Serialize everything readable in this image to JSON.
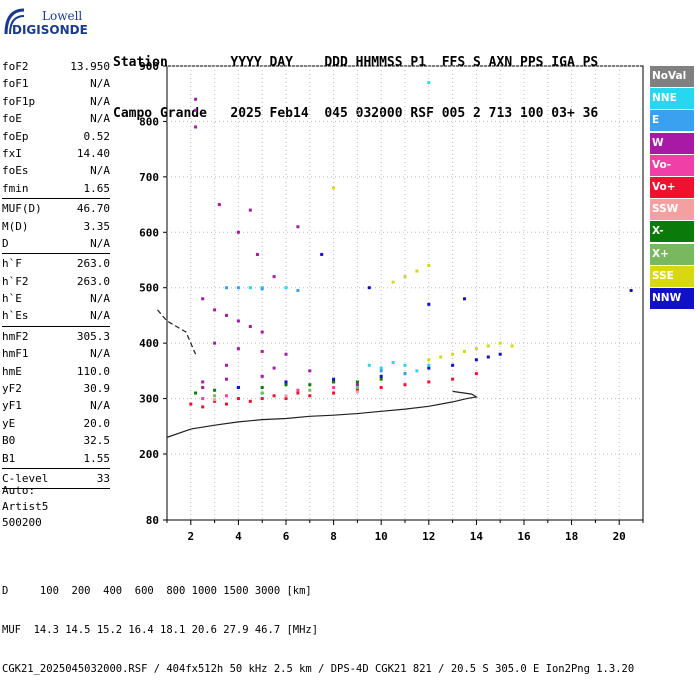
{
  "logo": {
    "line1": "Lowell",
    "line2": "DIGISONDE"
  },
  "header": {
    "row1": "Station        YYYY DAY    DDD HHMMSS P1  FFS S AXN PPS IGA PS",
    "row2": "Campo Grande   2025 Feb14  045 032000 RSF 005 2 713 100 03+ 36"
  },
  "params": [
    {
      "k": "foF2",
      "v": "13.950"
    },
    {
      "k": "foF1",
      "v": "N/A"
    },
    {
      "k": "foF1p",
      "v": "N/A"
    },
    {
      "k": "foE",
      "v": "N/A"
    },
    {
      "k": "foEp",
      "v": "0.52"
    },
    {
      "k": "fxI",
      "v": "14.40"
    },
    {
      "k": "foEs",
      "v": "N/A"
    },
    {
      "k": "fmin",
      "v": "1.65"
    },
    {
      "sep": true
    },
    {
      "k": "MUF(D)",
      "v": "46.70"
    },
    {
      "k": "M(D)",
      "v": "3.35"
    },
    {
      "k": "D",
      "v": "N/A"
    },
    {
      "sep": true
    },
    {
      "k": "h`F",
      "v": "263.0"
    },
    {
      "k": "h`F2",
      "v": "263.0"
    },
    {
      "k": "h`E",
      "v": "N/A"
    },
    {
      "k": "h`Es",
      "v": "N/A"
    },
    {
      "sep": true
    },
    {
      "k": "hmF2",
      "v": "305.3"
    },
    {
      "k": "hmF1",
      "v": "N/A"
    },
    {
      "k": "hmE",
      "v": "110.0"
    },
    {
      "k": "yF2",
      "v": "30.9"
    },
    {
      "k": "yF1",
      "v": "N/A"
    },
    {
      "k": "yE",
      "v": "20.0"
    },
    {
      "k": "B0",
      "v": "32.5"
    },
    {
      "k": "B1",
      "v": "1.55"
    },
    {
      "sep": true
    },
    {
      "k": "C-level",
      "v": "33"
    },
    {
      "sep": true
    }
  ],
  "auto": {
    "l1": "Auto:",
    "l2": "Artist5",
    "l3": "500200"
  },
  "legend": [
    {
      "label": "NoVal",
      "color": "#808080"
    },
    {
      "label": "NNE",
      "color": "#29d6f0"
    },
    {
      "label": "E",
      "color": "#3aa0f0"
    },
    {
      "label": "W",
      "color": "#a81aa6"
    },
    {
      "label": "Vo-",
      "color": "#f040a8"
    },
    {
      "label": "Vo+",
      "color": "#f01030"
    },
    {
      "label": "SSW",
      "color": "#f5a0a0"
    },
    {
      "label": "X-",
      "color": "#0a7a0a"
    },
    {
      "label": "X+",
      "color": "#7ab860"
    },
    {
      "label": "SSE",
      "color": "#d8d810"
    },
    {
      "label": "NNW",
      "color": "#1010c8"
    }
  ],
  "footer": {
    "line1": "D     100  200  400  600  800 1000 1500 3000 [km]",
    "line2": "MUF  14.3 14.5 15.2 16.4 18.1 20.6 27.9 46.7 [MHz]",
    "line3": "CGK21_2025045032000.RSF / 404fx512h 50 kHz 2.5 km / DPS-4D CGK21 821 / 20.5 S 305.0 E Ion2Png 1.3.20"
  },
  "chart_data": {
    "type": "scatter",
    "title": "",
    "xlabel": "",
    "ylabel": "",
    "xlim": [
      1,
      21
    ],
    "ylim": [
      80,
      900
    ],
    "xticks": [
      2,
      4,
      6,
      8,
      10,
      12,
      14,
      16,
      18,
      20
    ],
    "yticks": [
      80,
      200,
      300,
      400,
      500,
      600,
      700,
      800,
      900
    ],
    "grid": true,
    "point_clusters": [
      {
        "series": "W",
        "points": [
          [
            2.2,
            840
          ],
          [
            2.2,
            820
          ],
          [
            2.2,
            790
          ],
          [
            2.5,
            480
          ],
          [
            3.0,
            460
          ],
          [
            3.5,
            450
          ],
          [
            4.0,
            440
          ],
          [
            4.5,
            430
          ],
          [
            5.0,
            420
          ],
          [
            3.0,
            400
          ],
          [
            4.0,
            390
          ],
          [
            5.0,
            385
          ],
          [
            6.0,
            380
          ],
          [
            3.5,
            360
          ],
          [
            5.5,
            355
          ],
          [
            7.0,
            350
          ],
          [
            2.5,
            330
          ],
          [
            3.5,
            335
          ],
          [
            5.0,
            340
          ],
          [
            8.0,
            330
          ],
          [
            4.0,
            600
          ],
          [
            4.5,
            640
          ],
          [
            5.5,
            520
          ],
          [
            2.5,
            320
          ],
          [
            9.0,
            325
          ],
          [
            3.2,
            650
          ],
          [
            4.8,
            560
          ],
          [
            6.5,
            610
          ]
        ]
      },
      {
        "series": "Vo+",
        "points": [
          [
            2.0,
            290
          ],
          [
            2.5,
            285
          ],
          [
            3.0,
            295
          ],
          [
            3.5,
            290
          ],
          [
            4.0,
            300
          ],
          [
            4.5,
            295
          ],
          [
            5.0,
            300
          ],
          [
            5.5,
            305
          ],
          [
            6.0,
            300
          ],
          [
            6.5,
            310
          ],
          [
            7.0,
            305
          ],
          [
            8.0,
            310
          ],
          [
            9.0,
            315
          ],
          [
            10.0,
            320
          ],
          [
            11.0,
            325
          ],
          [
            12.0,
            330
          ],
          [
            13.0,
            335
          ],
          [
            14.0,
            345
          ]
        ]
      },
      {
        "series": "X-",
        "points": [
          [
            2.2,
            310
          ],
          [
            3.0,
            315
          ],
          [
            4.0,
            320
          ],
          [
            5.0,
            320
          ],
          [
            6.0,
            325
          ],
          [
            7.0,
            325
          ],
          [
            8.0,
            330
          ],
          [
            9.0,
            330
          ],
          [
            10.0,
            335
          ]
        ]
      },
      {
        "series": "NNW",
        "points": [
          [
            4.0,
            320
          ],
          [
            6.0,
            330
          ],
          [
            8.0,
            335
          ],
          [
            10.0,
            340
          ],
          [
            11.0,
            345
          ],
          [
            12.0,
            355
          ],
          [
            13.0,
            360
          ],
          [
            14.0,
            370
          ],
          [
            14.5,
            375
          ],
          [
            15.0,
            380
          ],
          [
            7.5,
            560
          ],
          [
            9.5,
            500
          ],
          [
            12.0,
            470
          ],
          [
            13.5,
            480
          ],
          [
            20.5,
            495
          ]
        ]
      },
      {
        "series": "SSE",
        "points": [
          [
            12.0,
            370
          ],
          [
            12.5,
            375
          ],
          [
            13.0,
            380
          ],
          [
            13.5,
            385
          ],
          [
            14.0,
            390
          ],
          [
            14.5,
            395
          ],
          [
            15.0,
            400
          ],
          [
            15.5,
            395
          ],
          [
            10.5,
            510
          ],
          [
            11.0,
            520
          ],
          [
            11.5,
            530
          ],
          [
            12.0,
            540
          ],
          [
            8.0,
            680
          ]
        ]
      },
      {
        "series": "NNE",
        "points": [
          [
            9.5,
            360
          ],
          [
            10.0,
            355
          ],
          [
            10.5,
            365
          ],
          [
            11.0,
            360
          ],
          [
            11.5,
            350
          ],
          [
            12.0,
            360
          ],
          [
            12.0,
            870
          ],
          [
            4.5,
            500
          ],
          [
            5.0,
            500
          ],
          [
            6.0,
            500
          ]
        ]
      },
      {
        "series": "E",
        "points": [
          [
            3.5,
            500
          ],
          [
            4.0,
            500
          ],
          [
            5.0,
            498
          ],
          [
            6.5,
            495
          ],
          [
            10.0,
            350
          ],
          [
            11.0,
            345
          ]
        ]
      },
      {
        "series": "Vo-",
        "points": [
          [
            2.5,
            300
          ],
          [
            3.5,
            305
          ],
          [
            5.0,
            310
          ],
          [
            6.5,
            315
          ],
          [
            8.0,
            320
          ]
        ]
      },
      {
        "series": "X+",
        "points": [
          [
            3.0,
            305
          ],
          [
            5.0,
            310
          ],
          [
            7.0,
            315
          ],
          [
            9.0,
            320
          ]
        ]
      },
      {
        "series": "SSW",
        "points": [
          [
            3.0,
            298
          ],
          [
            6.0,
            305
          ],
          [
            9.0,
            312
          ]
        ]
      }
    ],
    "profile_curve": [
      [
        1.0,
        230
      ],
      [
        2.0,
        245
      ],
      [
        3.0,
        252
      ],
      [
        4.0,
        258
      ],
      [
        5.0,
        262
      ],
      [
        6.0,
        264
      ],
      [
        7.0,
        268
      ],
      [
        8.0,
        270
      ],
      [
        9.0,
        273
      ],
      [
        10.0,
        277
      ],
      [
        11.0,
        281
      ],
      [
        12.0,
        286
      ],
      [
        13.0,
        294
      ],
      [
        13.6,
        300
      ],
      [
        14.0,
        303
      ],
      [
        13.8,
        308
      ],
      [
        13.0,
        313
      ]
    ],
    "virtual_trace_curve": [
      [
        0.6,
        460
      ],
      [
        1.0,
        440
      ],
      [
        1.4,
        430
      ],
      [
        1.8,
        420
      ],
      [
        2.0,
        400
      ],
      [
        2.2,
        380
      ]
    ]
  }
}
